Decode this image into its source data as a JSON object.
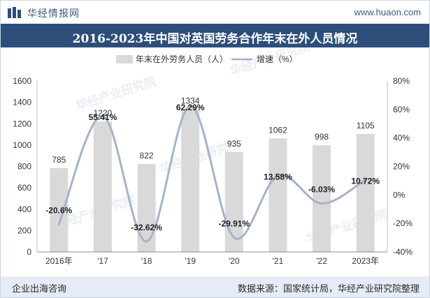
{
  "header": {
    "brand": "华经情报网",
    "site": "www.huaon.com"
  },
  "title": "2016-2023年中国对英国劳务合作年末在外人员情况",
  "footer": {
    "left": "企业出海咨询",
    "right": "数据来源：国家统计局，华经产业研究院整理"
  },
  "watermarks": [
    "华经产业研究院",
    "www.huaon.com"
  ],
  "colors": {
    "title_bg": "#2d4e7a",
    "bar": "#d9d9d9",
    "line": "#a5b3c9",
    "footer_bg": "#e5ecf5",
    "brand": "#3d5a80"
  },
  "chart_data": {
    "type": "bar",
    "categories": [
      "2016年",
      "'17",
      "'18",
      "'19",
      "'20",
      "'21",
      "'22",
      "2023年"
    ],
    "series": [
      {
        "name": "年末在外劳务人员（人）",
        "type": "bar",
        "axis": "left",
        "values": [
          785,
          1220,
          822,
          1334,
          935,
          1062,
          998,
          1105
        ],
        "labels": [
          "785",
          "1220",
          "822",
          "1334",
          "935",
          "1062",
          "998",
          "1105"
        ]
      },
      {
        "name": "增速（%）",
        "type": "line",
        "axis": "right",
        "smooth": true,
        "values": [
          -20.6,
          55.41,
          -32.62,
          62.29,
          -29.91,
          13.58,
          -6.03,
          10.72
        ],
        "labels": [
          "-20.6%",
          "55.41%",
          "-32.62%",
          "62.29%",
          "-29.91%",
          "13.58%",
          "-6.03%",
          "10.72%"
        ]
      }
    ],
    "y_left": {
      "ylim": [
        0,
        1600
      ],
      "ticks": [
        "0",
        "200",
        "400",
        "600",
        "800",
        "1000",
        "1200",
        "1400",
        "1600"
      ]
    },
    "y_right": {
      "ylim": [
        -40,
        80
      ],
      "ticks": [
        "-40%",
        "-20%",
        "0%",
        "20%",
        "40%",
        "60%",
        "80%"
      ]
    },
    "legend": "top-center",
    "grid": false
  }
}
